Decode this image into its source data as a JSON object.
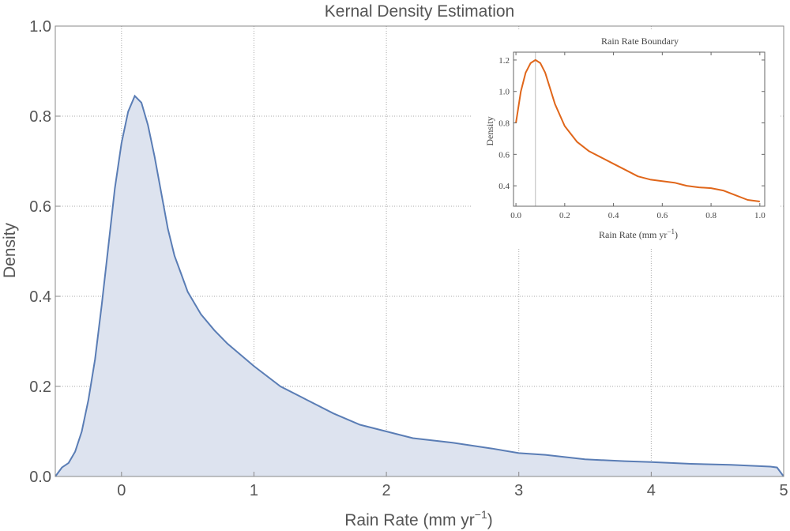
{
  "chart_data": [
    {
      "type": "area",
      "title": "Kernal Density Estimation",
      "xlabel": "Rain Rate (mm yr",
      "xlabel_exponent": "−1",
      "xlabel_suffix": ")",
      "ylabel": "Density",
      "xlim": [
        -0.5,
        5
      ],
      "ylim": [
        0,
        1
      ],
      "x_ticks": [
        "0",
        "1",
        "2",
        "3",
        "4",
        "5"
      ],
      "y_ticks": [
        "0.0",
        "0.2",
        "0.4",
        "0.6",
        "0.8",
        "1.0"
      ],
      "grid": true,
      "colors": {
        "line": "#5a7db5",
        "fill": "#dde3ef",
        "grid": "#aaaaaa",
        "frame": "#888888"
      },
      "series": [
        {
          "x": [
            -0.5,
            -0.45,
            -0.4,
            -0.35,
            -0.3,
            -0.25,
            -0.2,
            -0.15,
            -0.1,
            -0.05,
            0.0,
            0.05,
            0.1,
            0.15,
            0.2,
            0.25,
            0.3,
            0.35,
            0.4,
            0.45,
            0.5,
            0.6,
            0.7,
            0.8,
            1.0,
            1.2,
            1.4,
            1.6,
            1.8,
            2.0,
            2.2,
            2.5,
            2.8,
            3.0,
            3.2,
            3.5,
            3.8,
            4.0,
            4.3,
            4.6,
            4.9,
            4.95,
            5.0
          ],
          "y": [
            0.0,
            0.02,
            0.03,
            0.055,
            0.1,
            0.17,
            0.26,
            0.38,
            0.51,
            0.64,
            0.74,
            0.81,
            0.845,
            0.83,
            0.78,
            0.71,
            0.63,
            0.55,
            0.49,
            0.45,
            0.41,
            0.36,
            0.325,
            0.295,
            0.245,
            0.2,
            0.17,
            0.14,
            0.115,
            0.1,
            0.085,
            0.075,
            0.062,
            0.052,
            0.048,
            0.038,
            0.034,
            0.032,
            0.028,
            0.026,
            0.022,
            0.02,
            0.0
          ]
        }
      ]
    },
    {
      "type": "line",
      "title": "Rain Rate Boundary",
      "xlabel": "Rain Rate (mm yr",
      "xlabel_exponent": "−1",
      "xlabel_suffix": ")",
      "ylabel": "Density",
      "xlim": [
        -0.01,
        1.02
      ],
      "ylim": [
        0.27,
        1.25
      ],
      "x_ticks": [
        "0.0",
        "0.2",
        "0.4",
        "0.6",
        "0.8",
        "1.0"
      ],
      "y_ticks": [
        "0.4",
        "0.6",
        "0.8",
        "1.0",
        "1.2"
      ],
      "marker_x": 0.08,
      "colors": {
        "line": "#e0661a",
        "marker": "#bbbbbb",
        "frame": "#666666"
      },
      "series": [
        {
          "x": [
            0.0,
            0.02,
            0.04,
            0.06,
            0.08,
            0.1,
            0.12,
            0.14,
            0.16,
            0.2,
            0.25,
            0.3,
            0.35,
            0.4,
            0.45,
            0.5,
            0.55,
            0.6,
            0.65,
            0.7,
            0.75,
            0.8,
            0.85,
            0.9,
            0.95,
            1.0
          ],
          "y": [
            0.8,
            1.0,
            1.12,
            1.18,
            1.2,
            1.18,
            1.12,
            1.02,
            0.92,
            0.78,
            0.68,
            0.62,
            0.58,
            0.54,
            0.5,
            0.46,
            0.44,
            0.43,
            0.42,
            0.4,
            0.39,
            0.385,
            0.37,
            0.34,
            0.31,
            0.3
          ]
        }
      ]
    }
  ]
}
